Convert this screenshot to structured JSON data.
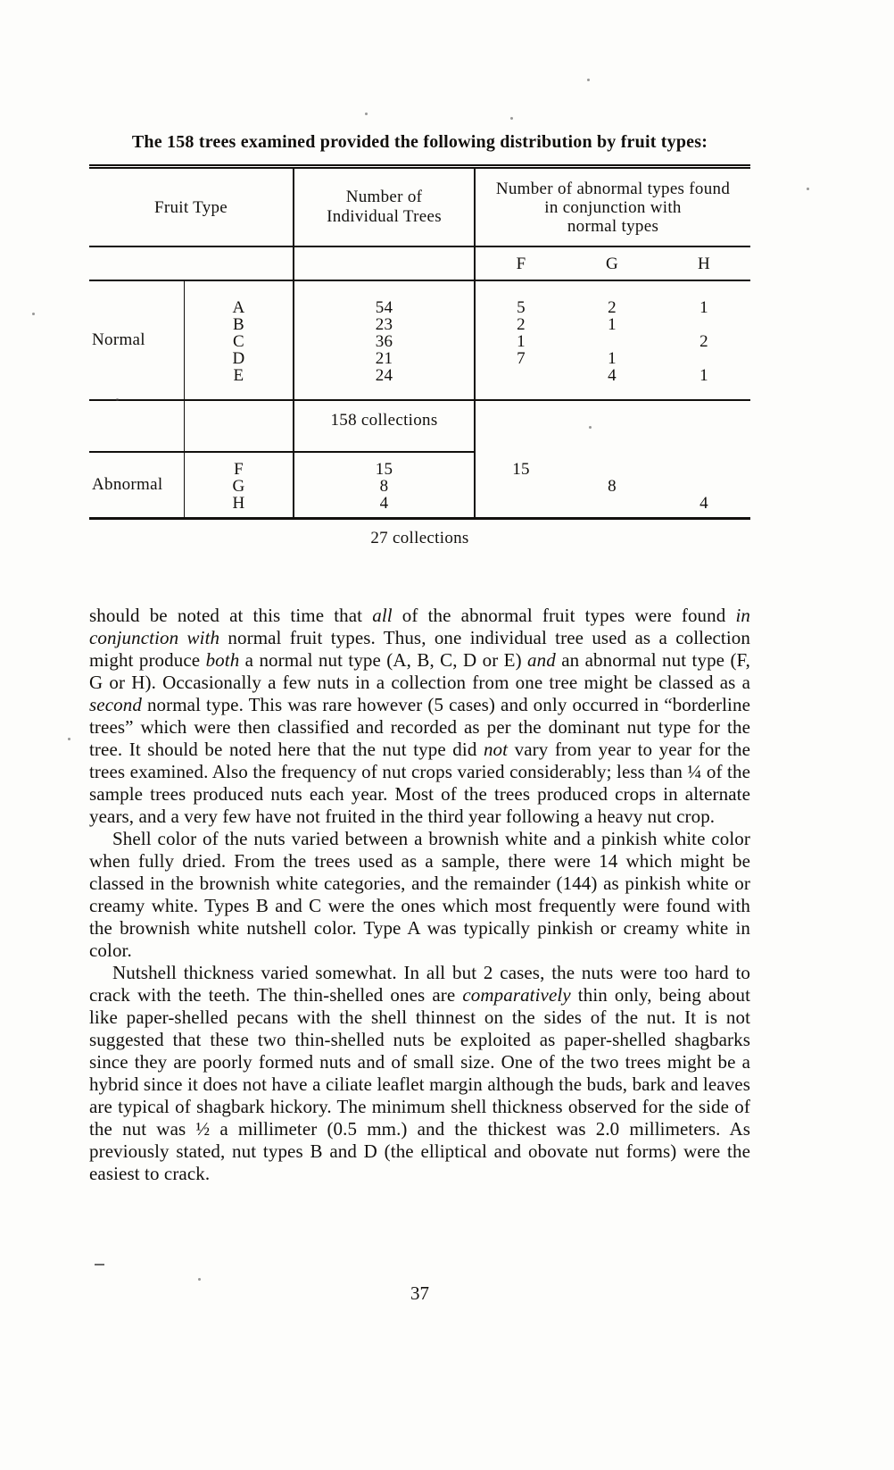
{
  "caption": "The 158 trees examined provided the following distribution by fruit types:",
  "table": {
    "header": {
      "fruit_type": "Fruit Type",
      "individual_trees": "Number of\nIndividual Trees",
      "abnormal_found": "Number of abnormal types found\nin conjunction with\nnormal types"
    },
    "subheader": {
      "f": "F",
      "g": "G",
      "h": "H"
    },
    "normal": {
      "label": "Normal",
      "rows": [
        {
          "type": "A",
          "trees": "54",
          "f": "5",
          "g": "2",
          "h": "1"
        },
        {
          "type": "B",
          "trees": "23",
          "f": "2",
          "g": "1",
          "h": ""
        },
        {
          "type": "C",
          "trees": "36",
          "f": "1",
          "g": "",
          "h": "2"
        },
        {
          "type": "D",
          "trees": "21",
          "f": "7",
          "g": "1",
          "h": ""
        },
        {
          "type": "E",
          "trees": "24",
          "f": "",
          "g": "4",
          "h": "1"
        }
      ],
      "total": "158 collections"
    },
    "abnormal": {
      "label": "Abnormal",
      "rows": [
        {
          "type": "F",
          "trees": "15",
          "f": "15",
          "g": "",
          "h": ""
        },
        {
          "type": "G",
          "trees": "8",
          "f": "",
          "g": "8",
          "h": ""
        },
        {
          "type": "H",
          "trees": "4",
          "f": "",
          "g": "",
          "h": "4"
        }
      ],
      "total": "27 collections"
    }
  },
  "body": {
    "para1": [
      {
        "t": "should be noted at this time that "
      },
      {
        "t": "all",
        "i": true
      },
      {
        "t": " of the abnormal fruit types were found "
      },
      {
        "t": "in conjunction with",
        "i": true
      },
      {
        "t": " normal fruit types. Thus, one individual tree used as a collection might produce "
      },
      {
        "t": "both",
        "i": true
      },
      {
        "t": " a normal nut type (A, B, C, D or E) "
      },
      {
        "t": "and",
        "i": true
      },
      {
        "t": " an abnormal nut type (F, G or H). Occasionally a few nuts in a collection from one tree might be classed as a "
      },
      {
        "t": "second",
        "i": true
      },
      {
        "t": " normal type. This was rare however (5 cases) and only occurred in “borderline trees” which were then classified and recorded as per the dominant nut type for the tree. It should be noted here that the nut type did "
      },
      {
        "t": "not",
        "i": true
      },
      {
        "t": " vary from year to year for the trees examined. Also the frequency of nut crops varied considerably; less than ¼ of the sample trees produced nuts each year. Most of the trees produced crops in alternate years, and a very few have not fruited in the third year following a heavy nut crop."
      }
    ],
    "para2": [
      {
        "t": "Shell color of the nuts varied between a brownish white and a pinkish white color when fully dried. From the trees used as a sample, there were 14 which might be classed in the brownish white categories, and the remainder (144) as pinkish white or creamy white. Types B and C were the ones which most frequently were found with the brownish white nutshell color. Type A was typically pinkish or creamy white in color."
      }
    ],
    "para3": [
      {
        "t": "Nutshell thickness varied somewhat. In all but 2 cases, the nuts were too hard to crack with the teeth. The thin-shelled ones are "
      },
      {
        "t": "comparatively",
        "i": true
      },
      {
        "t": " thin only, being about like paper-shelled pecans with the shell thinnest on the sides of the nut. It is not suggested that these two thin-shelled nuts be exploited as paper-shelled shagbarks since they are poorly formed nuts and of small size. One of the two trees might be a hybrid since it does not have a ciliate leaflet margin although the buds, bark and leaves are typical of shagbark hickory. The minimum shell thickness observed for the side of the nut was ½ a millimeter (0.5 mm.) and the thickest was 2.0 millimeters. As previously stated, nut types B and D (the elliptical and obovate nut forms) were the easiest to crack."
      }
    ]
  },
  "page_number": "37"
}
